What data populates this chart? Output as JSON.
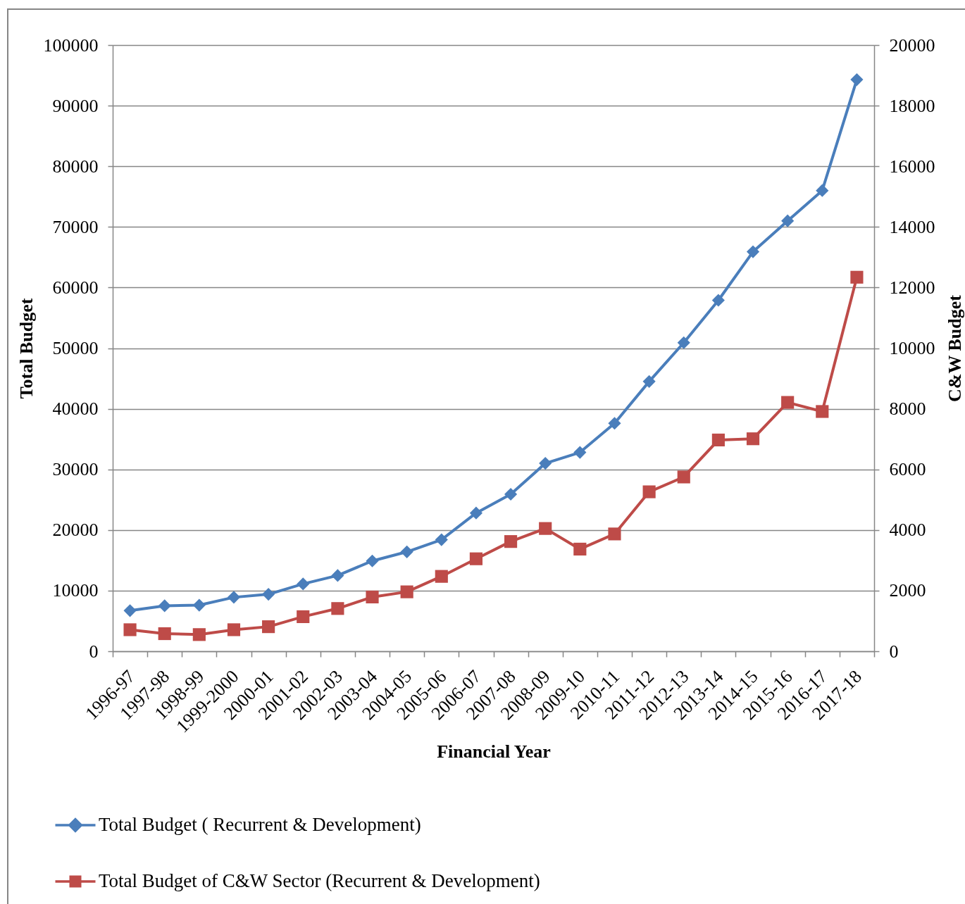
{
  "chart_data": {
    "type": "line",
    "categories": [
      "1996-97",
      "1997-98",
      "1998-99",
      "1999-2000",
      "2000-01",
      "2001-02",
      "2002-03",
      "2003-04",
      "2004-05",
      "2005-06",
      "2006-07",
      "2007-08",
      "2008-09",
      "2009-10",
      "2010-11",
      "2011-12",
      "2012-13",
      "2013-14",
      "2014-15",
      "2015-16",
      "2016-17",
      "2017-18"
    ],
    "series": [
      {
        "name": "Total Budget ( Recurrent & Development)",
        "color": "#4a7ebb",
        "marker": "diamond",
        "values": [
          6700,
          7500,
          7600,
          8900,
          9400,
          11100,
          12500,
          14900,
          16400,
          18400,
          22800,
          25900,
          31000,
          32800,
          37600,
          44500,
          50900,
          57900,
          65900,
          71000,
          76000,
          94300
        ]
      },
      {
        "name": "Total Budget of C&W Sector (Recurrent & Development)",
        "color": "#be4b48",
        "marker": "square",
        "axis": "y2",
        "values": [
          710,
          580,
          550,
          710,
          810,
          1140,
          1410,
          1790,
          1960,
          2470,
          3050,
          3620,
          4050,
          3370,
          3870,
          5260,
          5750,
          6970,
          7010,
          8210,
          7910,
          12340
        ]
      }
    ],
    "xlabel": "Financial Year",
    "ylabel": "Total Budget",
    "y2label": "C&W Budget",
    "ylim": [
      0,
      100000
    ],
    "yticks": [
      0,
      10000,
      20000,
      30000,
      40000,
      50000,
      60000,
      70000,
      80000,
      90000,
      100000
    ],
    "y2lim": [
      0,
      20000
    ],
    "y2ticks": [
      0,
      2000,
      4000,
      6000,
      8000,
      10000,
      12000,
      14000,
      16000,
      18000,
      20000
    ],
    "grid": "y",
    "legend": "bottom"
  }
}
